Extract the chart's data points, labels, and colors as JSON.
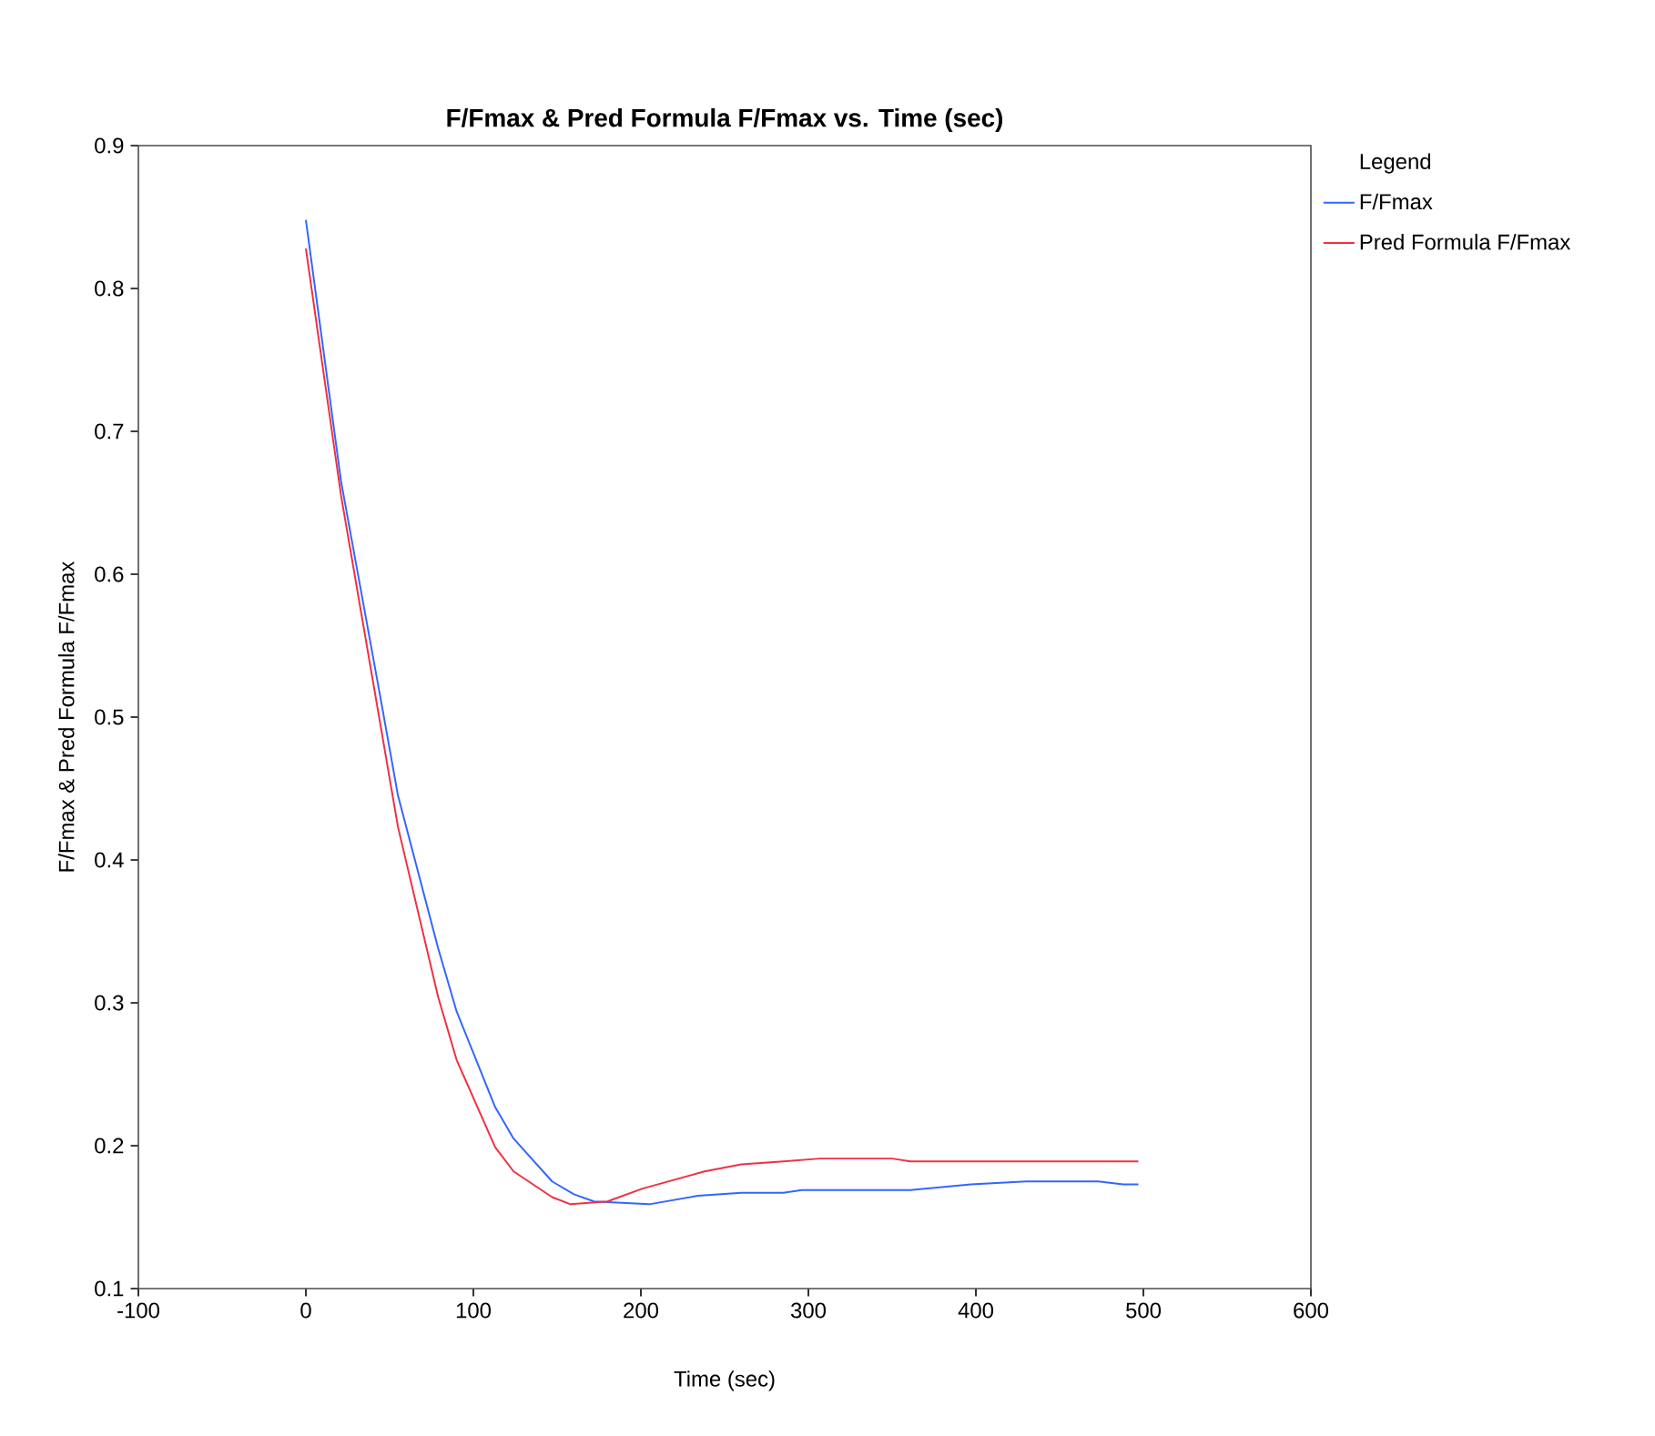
{
  "chart_data": {
    "type": "line",
    "title": "F/Fmax & Pred Formula F/Fmax vs. Time (sec)",
    "xlabel": "Time (sec)",
    "ylabel": "F/Fmax & Pred Formula F/Fmax",
    "legend_title": "Legend",
    "legend": "right",
    "grid": false,
    "line_style": "solid",
    "marker": "none",
    "xlim": [
      -100,
      600
    ],
    "xticks": [
      -100,
      0,
      100,
      200,
      300,
      400,
      500,
      600
    ],
    "ylim": [
      0.1,
      0.9
    ],
    "yticks": [
      0.1,
      0.2,
      0.3,
      0.4,
      0.5,
      0.6,
      0.7,
      0.8,
      0.9
    ],
    "series": [
      {
        "name": "F/Fmax",
        "color": "#3366ff",
        "x": [
          0,
          21,
          44,
          55,
          79,
          90,
          113,
          124,
          147,
          160,
          172,
          205,
          234,
          260,
          285,
          296,
          361,
          397,
          430,
          473,
          488,
          497
        ],
        "values": [
          0.848,
          0.665,
          0.517,
          0.445,
          0.338,
          0.294,
          0.227,
          0.205,
          0.175,
          0.166,
          0.161,
          0.159,
          0.165,
          0.167,
          0.167,
          0.169,
          0.169,
          0.173,
          0.175,
          0.175,
          0.173,
          0.173
        ]
      },
      {
        "name": "Pred Formula F/Fmax",
        "color": "#f03045",
        "x": [
          0,
          21,
          55,
          79,
          90,
          113,
          124,
          147,
          158,
          180,
          201,
          238,
          260,
          285,
          307,
          350,
          361,
          497
        ],
        "values": [
          0.828,
          0.655,
          0.423,
          0.304,
          0.26,
          0.199,
          0.182,
          0.164,
          0.159,
          0.161,
          0.17,
          0.182,
          0.187,
          0.189,
          0.191,
          0.191,
          0.189,
          0.189
        ]
      }
    ]
  }
}
